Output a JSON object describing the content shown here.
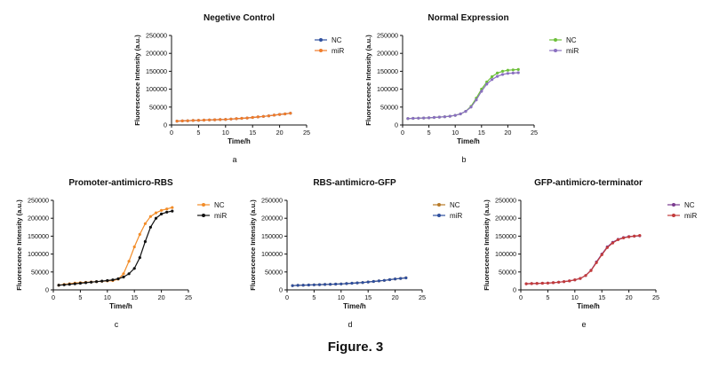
{
  "figure_caption": "Figure. 3",
  "chart_data": [
    {
      "type": "line",
      "panel_label": "a",
      "title": "Negetive Control",
      "xlabel": "Time/h",
      "ylabel": "Fluorescence Intensity (a.u.)",
      "xlim": [
        0,
        25
      ],
      "ylim": [
        0,
        250000
      ],
      "xticks": [
        0,
        5,
        10,
        15,
        20,
        25
      ],
      "yticks": [
        0,
        50000,
        100000,
        150000,
        200000,
        250000
      ],
      "grid": false,
      "legend_position": "top-right",
      "series": [
        {
          "name": "NC",
          "color": "#2e4f9e",
          "x": [
            1,
            2,
            3,
            4,
            5,
            6,
            7,
            8,
            9,
            10,
            11,
            12,
            13,
            14,
            15,
            16,
            17,
            18,
            19,
            20,
            21,
            22
          ],
          "y": [
            11000,
            11500,
            12000,
            12500,
            13000,
            13500,
            14000,
            14500,
            15000,
            15500,
            16500,
            17500,
            18500,
            19500,
            21000,
            22500,
            24000,
            25500,
            27500,
            29500,
            31000,
            33000
          ]
        },
        {
          "name": "miR",
          "color": "#f07c2a",
          "x": [
            1,
            2,
            3,
            4,
            5,
            6,
            7,
            8,
            9,
            10,
            11,
            12,
            13,
            14,
            15,
            16,
            17,
            18,
            19,
            20,
            21,
            22
          ],
          "y": [
            11000,
            11500,
            12000,
            12500,
            13000,
            13500,
            14000,
            14500,
            15000,
            15500,
            16500,
            17500,
            18500,
            19500,
            21000,
            22500,
            24000,
            25500,
            27500,
            29500,
            31000,
            33000
          ]
        }
      ]
    },
    {
      "type": "line",
      "panel_label": "b",
      "title": "Normal Expression",
      "xlabel": "Time/h",
      "ylabel": "Fluorescence Intensity (a.u.)",
      "xlim": [
        0,
        25
      ],
      "ylim": [
        0,
        250000
      ],
      "xticks": [
        0,
        5,
        10,
        15,
        20,
        25
      ],
      "yticks": [
        0,
        50000,
        100000,
        150000,
        200000,
        250000
      ],
      "grid": false,
      "legend_position": "top-right",
      "series": [
        {
          "name": "NC",
          "color": "#6dbf3a",
          "x": [
            1,
            2,
            3,
            4,
            5,
            6,
            7,
            8,
            9,
            10,
            11,
            12,
            13,
            14,
            15,
            16,
            17,
            18,
            19,
            20,
            21,
            22
          ],
          "y": [
            18000,
            18500,
            19000,
            19500,
            20000,
            21000,
            22000,
            23000,
            24500,
            27000,
            31000,
            38000,
            52000,
            75000,
            100000,
            120000,
            135000,
            145000,
            150000,
            153000,
            154000,
            155000
          ]
        },
        {
          "name": "miR",
          "color": "#8a6fc0",
          "x": [
            1,
            2,
            3,
            4,
            5,
            6,
            7,
            8,
            9,
            10,
            11,
            12,
            13,
            14,
            15,
            16,
            17,
            18,
            19,
            20,
            21,
            22
          ],
          "y": [
            18000,
            18500,
            19000,
            19500,
            20000,
            21000,
            22000,
            23000,
            24500,
            27000,
            31000,
            38000,
            50000,
            70000,
            94000,
            114000,
            127000,
            136000,
            141000,
            144000,
            145000,
            146000
          ]
        }
      ]
    },
    {
      "type": "line",
      "panel_label": "c",
      "title": "Promoter-antimicro-RBS",
      "xlabel": "Time/h",
      "ylabel": "Fluorescence Intensity (a.u.)",
      "xlim": [
        0,
        25
      ],
      "ylim": [
        0,
        250000
      ],
      "xticks": [
        0,
        5,
        10,
        15,
        20,
        25
      ],
      "yticks": [
        0,
        50000,
        100000,
        150000,
        200000,
        250000
      ],
      "grid": false,
      "legend_position": "top-right",
      "series": [
        {
          "name": "NC",
          "color": "#f28c28",
          "x": [
            1,
            2,
            3,
            4,
            5,
            6,
            7,
            8,
            9,
            10,
            11,
            12,
            13,
            14,
            15,
            16,
            17,
            18,
            19,
            20,
            21,
            22
          ],
          "y": [
            13000,
            15000,
            17000,
            19000,
            20000,
            21000,
            22000,
            23000,
            24000,
            25000,
            26000,
            30000,
            45000,
            80000,
            120000,
            155000,
            185000,
            205000,
            215000,
            222000,
            226000,
            230000
          ]
        },
        {
          "name": "miR",
          "color": "#111111",
          "x": [
            1,
            2,
            3,
            4,
            5,
            6,
            7,
            8,
            9,
            10,
            11,
            12,
            13,
            14,
            15,
            16,
            17,
            18,
            19,
            20,
            21,
            22
          ],
          "y": [
            13000,
            14000,
            15500,
            17000,
            18500,
            20000,
            21500,
            23000,
            24500,
            26000,
            28000,
            31000,
            36000,
            45000,
            60000,
            90000,
            135000,
            175000,
            200000,
            212000,
            217000,
            220000
          ]
        }
      ]
    },
    {
      "type": "line",
      "panel_label": "d",
      "title": "RBS-antimicro-GFP",
      "xlabel": "Time/h",
      "ylabel": "Fluorescence Intensity (a.u.)",
      "xlim": [
        0,
        25
      ],
      "ylim": [
        0,
        250000
      ],
      "xticks": [
        0,
        5,
        10,
        15,
        20,
        25
      ],
      "yticks": [
        0,
        50000,
        100000,
        150000,
        200000,
        250000
      ],
      "grid": false,
      "legend_position": "top-right",
      "series": [
        {
          "name": "NC",
          "color": "#b87a28",
          "x": [
            1,
            2,
            3,
            4,
            5,
            6,
            7,
            8,
            9,
            10,
            11,
            12,
            13,
            14,
            15,
            16,
            17,
            18,
            19,
            20,
            21,
            22
          ],
          "y": [
            12000,
            12500,
            13000,
            13500,
            14000,
            14500,
            15000,
            15500,
            16000,
            16500,
            17500,
            18500,
            19500,
            20500,
            22000,
            23500,
            25000,
            26500,
            28500,
            30500,
            32000,
            34000
          ]
        },
        {
          "name": "miR",
          "color": "#2e4f9e",
          "x": [
            1,
            2,
            3,
            4,
            5,
            6,
            7,
            8,
            9,
            10,
            11,
            12,
            13,
            14,
            15,
            16,
            17,
            18,
            19,
            20,
            21,
            22
          ],
          "y": [
            12000,
            12500,
            13000,
            13500,
            14000,
            14500,
            15000,
            15500,
            16000,
            16500,
            17500,
            18500,
            19500,
            20500,
            22000,
            23500,
            25000,
            26500,
            28500,
            30500,
            32000,
            33500
          ]
        }
      ]
    },
    {
      "type": "line",
      "panel_label": "e",
      "title": "GFP-antimicro-terminator",
      "xlabel": "Time/h",
      "ylabel": "Fluorescence Intensity (a.u.)",
      "xlim": [
        0,
        25
      ],
      "ylim": [
        0,
        250000
      ],
      "xticks": [
        0,
        5,
        10,
        15,
        20,
        25
      ],
      "yticks": [
        0,
        50000,
        100000,
        150000,
        200000,
        250000
      ],
      "grid": false,
      "legend_position": "top-right",
      "series": [
        {
          "name": "NC",
          "color": "#7a3b8f",
          "x": [
            1,
            2,
            3,
            4,
            5,
            6,
            7,
            8,
            9,
            10,
            11,
            12,
            13,
            14,
            15,
            16,
            17,
            18,
            19,
            20,
            21,
            22
          ],
          "y": [
            17000,
            17500,
            18000,
            18500,
            19000,
            20000,
            21500,
            23000,
            25000,
            28000,
            32000,
            40000,
            55000,
            78000,
            100000,
            120000,
            133000,
            141000,
            146000,
            149000,
            150000,
            151000
          ]
        },
        {
          "name": "miR",
          "color": "#c23b3b",
          "x": [
            1,
            2,
            3,
            4,
            5,
            6,
            7,
            8,
            9,
            10,
            11,
            12,
            13,
            14,
            15,
            16,
            17,
            18,
            19,
            20,
            21,
            22
          ],
          "y": [
            17000,
            17500,
            18000,
            18500,
            19000,
            20000,
            21500,
            23000,
            25000,
            28000,
            32000,
            40000,
            54000,
            76000,
            98000,
            118000,
            131000,
            140000,
            145000,
            148000,
            150000,
            152000
          ]
        }
      ]
    }
  ]
}
